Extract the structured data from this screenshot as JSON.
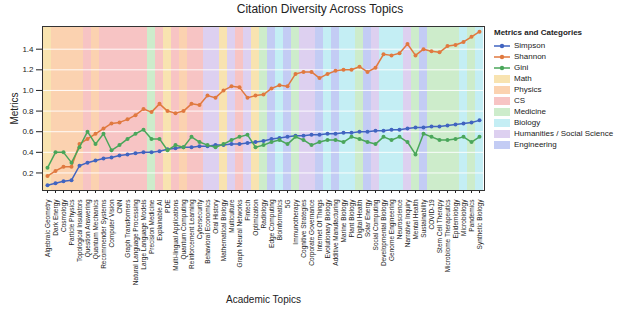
{
  "chart_data": {
    "type": "line",
    "title": "Citation Diversity Across Topics",
    "x_label": "Academic Topics",
    "y_label": "Metrics",
    "legend_title": "Metrics and Categories",
    "legend": "right",
    "grid": true,
    "categories": [
      "Algebraic Geometry",
      "Dark Energy",
      "Cosmology",
      "Particle Physics",
      "Topological Insulators",
      "Question Answering",
      "Quantum Mechanics",
      "Recommender Systems",
      "Computer Vision",
      "CNN",
      "Graph Transformers",
      "Natural Language Processing",
      "Large Language Models",
      "Precision Medicine",
      "Explainable AI",
      "PDE",
      "Multi-lingual Applications",
      "Quantum Computing",
      "Reinforcement Learning",
      "Cybersecurity",
      "Behavioral Economics",
      "Oral History",
      "Mathematical Biology",
      "Multiculture",
      "Graph Neural Networks",
      "Fintech",
      "Optimization",
      "Radiology",
      "Edge Computing",
      "Bioinformatics",
      "5G",
      "Immunotherapy",
      "Cognitive Strategies",
      "Corporate Governance",
      "Internet Of Things",
      "Evolutionary Biology",
      "Additive Manufacturing",
      "Marine Biology",
      "Plant Biology",
      "Digital Health",
      "Solar Energy",
      "Social Computing",
      "Developmental Biology",
      "Genome Engineering",
      "Neuroscience",
      "Narrative Inquiry",
      "Mental Health",
      "Sustainability",
      "COVID-19",
      "Stem Cell Therapy",
      "Microbiome Therapeutics",
      "Epidemiology",
      "Microbiology",
      "Pandemics",
      "Synthetic Biology"
    ],
    "topic_categories": [
      "Math",
      "Physics",
      "Physics",
      "Physics",
      "Physics",
      "CS",
      "Physics",
      "CS",
      "CS",
      "CS",
      "CS",
      "CS",
      "CS",
      "Medicine",
      "CS",
      "Math",
      "CS",
      "Physics",
      "CS",
      "CS",
      "Humanities / Social Science",
      "Humanities / Social Science",
      "Math",
      "Humanities / Social Science",
      "CS",
      "Humanities / Social Science",
      "Math",
      "Medicine",
      "Engineering",
      "Biology",
      "Engineering",
      "Medicine",
      "Humanities / Social Science",
      "Humanities / Social Science",
      "Engineering",
      "Biology",
      "Engineering",
      "Biology",
      "Biology",
      "Medicine",
      "Engineering",
      "Humanities / Social Science",
      "Biology",
      "Biology",
      "Biology",
      "Humanities / Social Science",
      "Medicine",
      "Engineering",
      "Medicine",
      "Medicine",
      "Medicine",
      "Medicine",
      "Biology",
      "Medicine",
      "Biology"
    ],
    "bands": [
      {
        "name": "Math",
        "color": "#f8e3b0"
      },
      {
        "name": "Physics",
        "color": "#fbd2b0"
      },
      {
        "name": "CS",
        "color": "#f7c4c4"
      },
      {
        "name": "Medicine",
        "color": "#cdeccb"
      },
      {
        "name": "Biology",
        "color": "#c4eef4"
      },
      {
        "name": "Humanities / Social Science",
        "color": "#ddd0f0"
      },
      {
        "name": "Engineering",
        "color": "#c3ccf4"
      }
    ],
    "series": [
      {
        "name": "Simpson",
        "color": "#4164c0",
        "marker": "o",
        "values": [
          0.08,
          0.1,
          0.12,
          0.13,
          0.27,
          0.3,
          0.32,
          0.34,
          0.35,
          0.37,
          0.38,
          0.39,
          0.4,
          0.4,
          0.41,
          0.43,
          0.44,
          0.45,
          0.45,
          0.46,
          0.46,
          0.47,
          0.47,
          0.48,
          0.48,
          0.49,
          0.5,
          0.51,
          0.53,
          0.54,
          0.55,
          0.56,
          0.56,
          0.57,
          0.57,
          0.58,
          0.58,
          0.59,
          0.59,
          0.6,
          0.6,
          0.61,
          0.61,
          0.62,
          0.62,
          0.63,
          0.64,
          0.64,
          0.65,
          0.65,
          0.66,
          0.67,
          0.68,
          0.69,
          0.71
        ]
      },
      {
        "name": "Shannon",
        "color": "#e0793f",
        "marker": "o",
        "values": [
          0.17,
          0.22,
          0.26,
          0.26,
          0.48,
          0.53,
          0.58,
          0.63,
          0.68,
          0.69,
          0.72,
          0.76,
          0.82,
          0.79,
          0.87,
          0.8,
          0.78,
          0.8,
          0.87,
          0.86,
          0.95,
          0.93,
          1.0,
          1.04,
          1.03,
          0.93,
          0.95,
          0.96,
          1.02,
          1.05,
          1.04,
          1.16,
          1.18,
          1.18,
          1.12,
          1.16,
          1.19,
          1.2,
          1.2,
          1.23,
          1.18,
          1.22,
          1.35,
          1.34,
          1.36,
          1.45,
          1.34,
          1.4,
          1.38,
          1.37,
          1.43,
          1.44,
          1.47,
          1.52,
          1.57
        ]
      },
      {
        "name": "Gini",
        "color": "#4aa65a",
        "marker": "o",
        "values": [
          0.25,
          0.4,
          0.4,
          0.3,
          0.45,
          0.6,
          0.48,
          0.58,
          0.42,
          0.47,
          0.53,
          0.58,
          0.62,
          0.53,
          0.53,
          0.42,
          0.47,
          0.45,
          0.55,
          0.5,
          0.47,
          0.45,
          0.48,
          0.52,
          0.55,
          0.57,
          0.45,
          0.47,
          0.5,
          0.52,
          0.48,
          0.55,
          0.52,
          0.47,
          0.5,
          0.52,
          0.52,
          0.5,
          0.55,
          0.53,
          0.5,
          0.48,
          0.55,
          0.52,
          0.55,
          0.5,
          0.38,
          0.58,
          0.55,
          0.52,
          0.52,
          0.53,
          0.55,
          0.5,
          0.55
        ]
      }
    ],
    "ylim": [
      0.03,
      1.62
    ],
    "yticks": [
      0.2,
      0.4,
      0.6,
      0.8,
      {
        "value": 1,
        "label": "1.0"
      },
      1.2,
      1.4
    ]
  }
}
